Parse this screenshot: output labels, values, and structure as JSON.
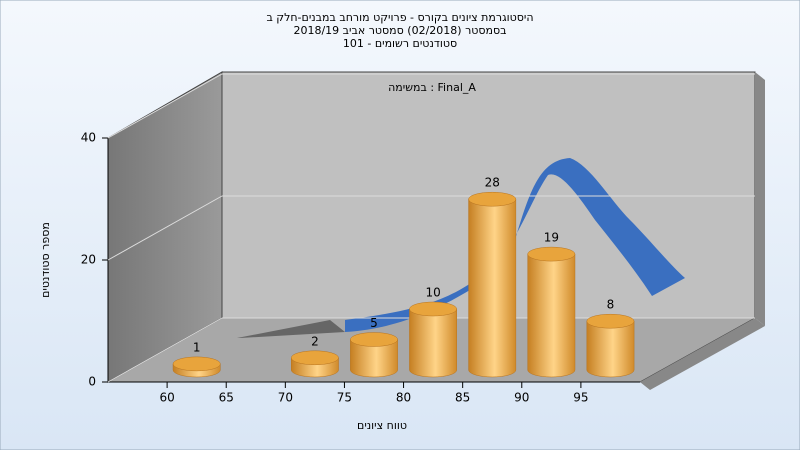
{
  "chart_data": {
    "type": "histogram",
    "title": [
      "היסטוגרמת ציונים בקורס - פרויקט מורחב במבנים-חלק ב",
      "בסמסטר  (02/2018)  סמסטר אביב 2018/19",
      "סטודנטים רשומים - 101"
    ],
    "annotation": "במשימה : Final_A",
    "x_label": "טווח ציונים",
    "y_label": "מספר סטודנטים",
    "bins": [
      60,
      65,
      70,
      75,
      80,
      85,
      90,
      95,
      100
    ],
    "values": [
      1,
      0,
      2,
      5,
      10,
      28,
      19,
      8
    ],
    "color": "#e8a43c",
    "xlim": [
      55,
      100
    ],
    "xticks": [
      60,
      65,
      70,
      75,
      80,
      85,
      90,
      95
    ],
    "ylim": [
      0,
      40
    ],
    "yticks": [
      0,
      20,
      40
    ],
    "grid": true
  }
}
